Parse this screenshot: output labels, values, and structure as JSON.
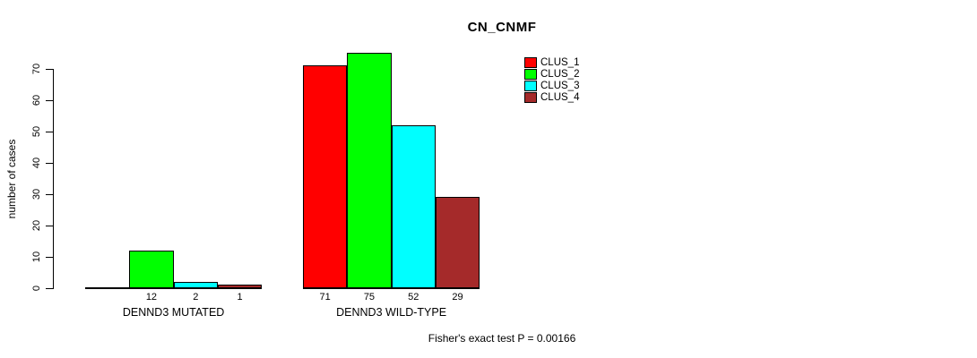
{
  "chart_data": {
    "type": "bar",
    "title": "CN_CNMF",
    "ylabel": "number of cases",
    "xlabel": "",
    "ylim": [
      0,
      75
    ],
    "yticks": [
      0,
      10,
      20,
      30,
      40,
      50,
      60,
      70
    ],
    "grid": false,
    "categories": [
      "DENND3 MUTATED",
      "DENND3 WILD-TYPE"
    ],
    "series": [
      {
        "name": "CLUS_1",
        "color": "#FF0000",
        "values": [
          0,
          71
        ],
        "labels": [
          "",
          "71"
        ]
      },
      {
        "name": "CLUS_2",
        "color": "#00FF00",
        "values": [
          12,
          75
        ],
        "labels": [
          "12",
          "75"
        ]
      },
      {
        "name": "CLUS_3",
        "color": "#00FFFF",
        "values": [
          2,
          52
        ],
        "labels": [
          "2",
          "52"
        ]
      },
      {
        "name": "CLUS_4",
        "color": "#A52A2A",
        "values": [
          1,
          29
        ],
        "labels": [
          "1",
          "29"
        ]
      }
    ],
    "legend": {
      "position": "top-right",
      "entries": [
        "CLUS_1",
        "CLUS_2",
        "CLUS_3",
        "CLUS_4"
      ]
    },
    "footer": "Fisher's exact test P = 0.00166",
    "axis_color": "#000000",
    "bar_border_color": "#000000"
  }
}
